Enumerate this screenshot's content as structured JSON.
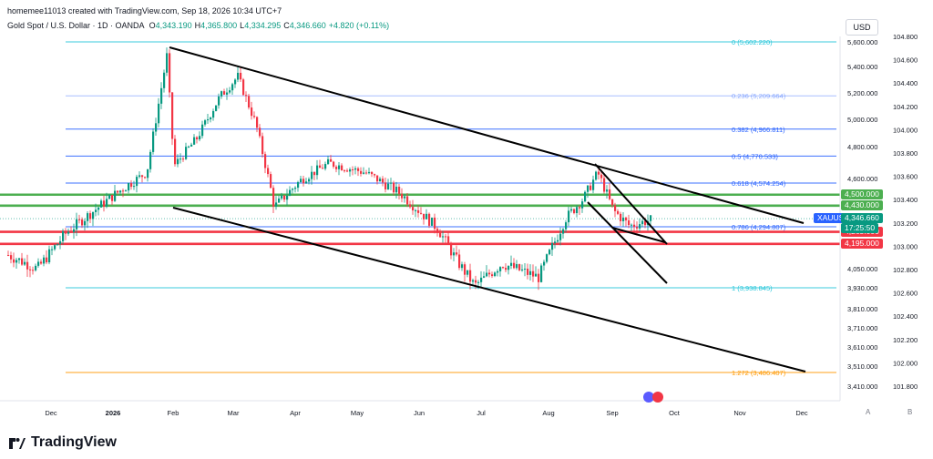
{
  "header": {
    "creator": "homemee11013 created with TradingView.com, Sep 18, 2026 10:34 UTC+7",
    "symbol_title": "Gold Spot / U.S. Dollar · 1D · OANDA",
    "ohlc": [
      {
        "key": "O",
        "value": "4,343.190"
      },
      {
        "key": "H",
        "value": "4,365.800"
      },
      {
        "key": "L",
        "value": "4,334.295"
      },
      {
        "key": "C",
        "value": "4,346.660"
      },
      {
        "key": "",
        "value": "+4.820 (+0.11%)"
      }
    ],
    "currency_button": "USD"
  },
  "colors": {
    "up": "#089981",
    "down": "#f23645",
    "green_level": "#4caf50",
    "red_level": "#f23645",
    "fib_cyan": "#26c6da",
    "fib_blue": "#2962ff",
    "fib_orange": "#ff9800",
    "trend": "#000000"
  },
  "chart_data": {
    "type": "candlestick",
    "symbol": "XAUUSD",
    "x_ticks": [
      "Dec",
      "2026",
      "Feb",
      "Mar",
      "Apr",
      "May",
      "Jun",
      "Jul",
      "Aug",
      "Sep",
      "Oct",
      "Nov",
      "Dec"
    ],
    "price_axis_ticks": [
      "5,600.000",
      "5,400.000",
      "5,200.000",
      "5,000.000",
      "4,800.000",
      "4,600.000",
      "4,050.000",
      "3,930.000",
      "3,810.000",
      "3,710.000",
      "3,610.000",
      "3,510.000",
      "3,410.000"
    ],
    "dollar_index_axis_ticks": [
      "104.800",
      "104.600",
      "104.400",
      "104.200",
      "104.000",
      "103.800",
      "103.600",
      "103.400",
      "103.200",
      "103.000",
      "102.800",
      "102.600",
      "102.400",
      "102.200",
      "102.000",
      "101.800"
    ],
    "fib_levels": [
      {
        "label": "0 (5,602.220)",
        "ratio": 0,
        "price": 5602.22
      },
      {
        "label": "0.236 (5,209.664)",
        "ratio": 0.236,
        "price": 5209.664
      },
      {
        "label": "0.382 (4,966.811)",
        "ratio": 0.382,
        "price": 4966.811
      },
      {
        "label": "0.5 (4,770.533)",
        "ratio": 0.5,
        "price": 4770.533
      },
      {
        "label": "0.618 (4,574.254)",
        "ratio": 0.618,
        "price": 4574.254
      },
      {
        "label": "0.786 (4,294.807)",
        "ratio": 0.786,
        "price": 4294.807
      },
      {
        "label": "1 (3,938.845)",
        "ratio": 1,
        "price": 3938.845
      },
      {
        "label": "1.272 (3,486.407)",
        "ratio": 1.272,
        "price": 3486.407
      }
    ],
    "horizontal_levels": [
      {
        "label": "4,500.000",
        "price": 4500,
        "kind": "resistance"
      },
      {
        "label": "4,430.000",
        "price": 4430,
        "kind": "resistance"
      },
      {
        "label": "4,265.000",
        "price": 4265,
        "kind": "support"
      },
      {
        "label": "4,195.000",
        "price": 4195,
        "kind": "support"
      }
    ],
    "last_price": {
      "symbol": "XAUUSD",
      "price_label": "4,346.660",
      "countdown": "17:25:50"
    }
  },
  "footer": {
    "brand": "TradingView",
    "auto_button": "A",
    "scale_button": "B"
  }
}
